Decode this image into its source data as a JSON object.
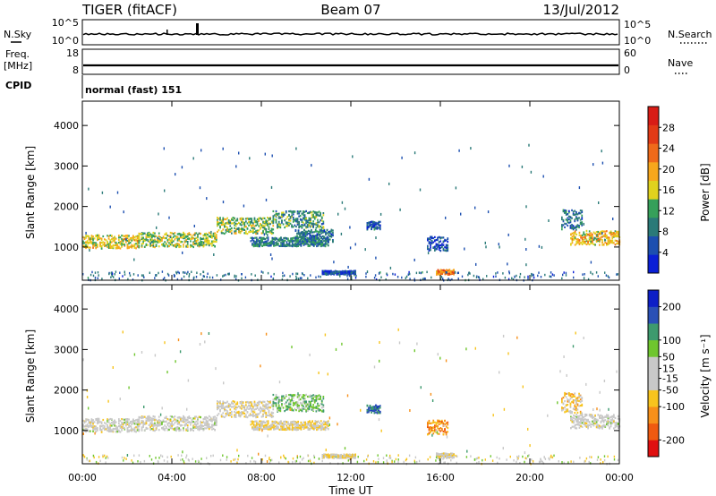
{
  "header": {
    "title": "TIGER (fitACF)",
    "beam": "Beam 07",
    "date": "13/Jul/2012"
  },
  "sky_panel": {
    "left_label": "N.Sky",
    "right_label": "N.Search",
    "left_ticks": [
      "10^5",
      "10^0"
    ],
    "right_ticks": [
      "10^5",
      "10^0"
    ]
  },
  "freq_panel": {
    "left_label": "Freq.",
    "left_unit": "[MHz]",
    "right_label": "Nave",
    "left_ticks": [
      "18",
      "8"
    ],
    "right_ticks": [
      "60",
      "0"
    ]
  },
  "cpid": {
    "label": "CPID",
    "value": "normal (fast) 151"
  },
  "colors": {
    "power_scale": [
      "#0a1fd6",
      "#1c4fb0",
      "#2a7a78",
      "#36a05a",
      "#e0d21e",
      "#f7a71c",
      "#ef6a1a",
      "#e23a16",
      "#d81c16"
    ],
    "velocity_scale": [
      "#e01010",
      "#ef5a10",
      "#f7901a",
      "#f7c41e",
      "#c8c8c8",
      "#c8c8c8",
      "#6fc62e",
      "#3d9a6e",
      "#2a50b6",
      "#0d1fc7"
    ]
  },
  "chart_data": [
    {
      "type": "heatmap",
      "name": "power",
      "ylabel": "Slant Range [km]",
      "ylim": [
        180,
        4600
      ],
      "yticks": [
        "4000",
        "3000",
        "2000",
        "1000"
      ],
      "xlim": [
        0,
        24
      ],
      "colorbar": {
        "label": "Power [dB]",
        "ticks": [
          "28",
          "24",
          "20",
          "16",
          "12",
          "8",
          "4"
        ],
        "range": [
          0,
          32
        ]
      },
      "regions": [
        {
          "t0": 0.0,
          "t1": 2.5,
          "r_center": 1150,
          "r_width": 330,
          "level": 17
        },
        {
          "t0": 2.5,
          "t1": 6.0,
          "r_center": 1200,
          "r_width": 360,
          "level": 15
        },
        {
          "t0": 6.0,
          "t1": 8.5,
          "r_center": 1550,
          "r_width": 400,
          "level": 14
        },
        {
          "t0": 8.5,
          "t1": 10.8,
          "r_center": 1700,
          "r_width": 420,
          "level": 11
        },
        {
          "t0": 7.5,
          "t1": 11.0,
          "r_center": 1150,
          "r_width": 220,
          "level": 9
        },
        {
          "t0": 9.5,
          "t1": 11.2,
          "r_center": 1300,
          "r_width": 300,
          "level": 8
        },
        {
          "t0": 12.7,
          "t1": 13.3,
          "r_center": 1550,
          "r_width": 200,
          "level": 6
        },
        {
          "t0": 15.4,
          "t1": 16.3,
          "r_center": 1100,
          "r_width": 350,
          "level": 5
        },
        {
          "t0": 15.8,
          "t1": 16.6,
          "r_center": 400,
          "r_width": 120,
          "level": 22
        },
        {
          "t0": 10.7,
          "t1": 12.2,
          "r_center": 390,
          "r_width": 90,
          "level": 5
        },
        {
          "t0": 21.4,
          "t1": 22.3,
          "r_center": 1700,
          "r_width": 500,
          "level": 8
        },
        {
          "t0": 21.8,
          "t1": 24.0,
          "r_center": 1250,
          "r_width": 350,
          "level": 18
        }
      ]
    },
    {
      "type": "heatmap",
      "name": "velocity",
      "ylabel": "Slant Range [km]",
      "xlabel": "Time UT",
      "ylim": [
        180,
        4600
      ],
      "yticks": [
        "4000",
        "3000",
        "2000",
        "1000"
      ],
      "xlim": [
        0,
        24
      ],
      "xticks": [
        "00:00",
        "04:00",
        "08:00",
        "12:00",
        "16:00",
        "20:00",
        "00:00"
      ],
      "colorbar": {
        "label": "Velocity [m s⁻¹]",
        "ticks": [
          "200",
          "100",
          "50",
          "15",
          "-15",
          "-50",
          "-100",
          "-200"
        ],
        "range": [
          -250,
          250
        ]
      },
      "regions": [
        {
          "t0": 0.0,
          "t1": 2.5,
          "r_center": 1150,
          "r_width": 330,
          "level": 0
        },
        {
          "t0": 2.5,
          "t1": 6.0,
          "r_center": 1200,
          "r_width": 360,
          "level": 0
        },
        {
          "t0": 6.0,
          "t1": 8.5,
          "r_center": 1550,
          "r_width": 400,
          "level": -20
        },
        {
          "t0": 8.5,
          "t1": 10.8,
          "r_center": 1700,
          "r_width": 420,
          "level": 80
        },
        {
          "t0": 7.5,
          "t1": 11.0,
          "r_center": 1150,
          "r_width": 220,
          "level": -40
        },
        {
          "t0": 12.7,
          "t1": 13.3,
          "r_center": 1550,
          "r_width": 200,
          "level": 150
        },
        {
          "t0": 15.4,
          "t1": 16.3,
          "r_center": 1100,
          "r_width": 350,
          "level": -120
        },
        {
          "t0": 15.8,
          "t1": 16.6,
          "r_center": 400,
          "r_width": 120,
          "level": -30
        },
        {
          "t0": 10.7,
          "t1": 12.2,
          "r_center": 390,
          "r_width": 90,
          "level": -40
        },
        {
          "t0": 21.4,
          "t1": 22.3,
          "r_center": 1700,
          "r_width": 500,
          "level": -60
        },
        {
          "t0": 21.8,
          "t1": 24.0,
          "r_center": 1250,
          "r_width": 350,
          "level": 0
        }
      ]
    }
  ]
}
